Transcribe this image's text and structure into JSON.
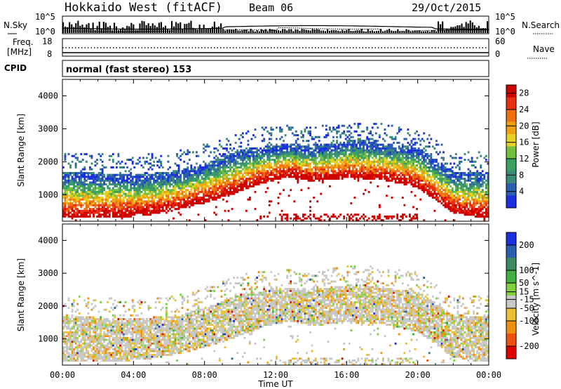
{
  "header": {
    "title": "Hokkaido West (fitACF)",
    "beam": "Beam 06",
    "date": "29/Oct/2015"
  },
  "summary_panel": {
    "nsky_label": "N.Sky",
    "nsky_ticks": [
      "10^5",
      "10^0"
    ],
    "nsearch_label": "N.Search",
    "nsearch_ticks": [
      "10^5",
      "10^0"
    ],
    "freq_label_1": "Freq.",
    "freq_label_2": "[MHz]",
    "freq_ticks": [
      "18",
      "8"
    ],
    "nave_label": "Nave",
    "nave_ticks": [
      "60",
      "0"
    ],
    "cpid_label": "CPID",
    "cpid_value": "normal (fast stereo) 153"
  },
  "colors": {
    "power_scale": [
      "#1a2fe0",
      "#2a5fb0",
      "#3a8a7a",
      "#3aa060",
      "#70c040",
      "#e8d020",
      "#f0a010",
      "#f07010",
      "#e83010",
      "#d00000"
    ],
    "velocity_scale": [
      "#1a2fe0",
      "#2a5fb0",
      "#3a8a60",
      "#40b040",
      "#80d040",
      "#c8c8c8",
      "#e8c030",
      "#f09010",
      "#f05010",
      "#e00000"
    ],
    "ground_scatter": "#808080"
  },
  "chart_data": [
    {
      "type": "heatmap",
      "parameter": "power",
      "xlabel": "Time UT",
      "ylabel": "Slant Range [km]",
      "x_ticks": [
        "00:00",
        "04:00",
        "08:00",
        "12:00",
        "16:00",
        "20:00",
        "00:00"
      ],
      "ylim": [
        200,
        4500
      ],
      "y_ticks": [
        1000,
        2000,
        3000,
        4000
      ],
      "colorbar_label": "Power [dB]",
      "colorbar_ticks": [
        4,
        8,
        12,
        16,
        20,
        24,
        28
      ],
      "colorbar_range": [
        0,
        30
      ],
      "echo_band": {
        "hours": [
          0,
          1,
          2,
          3,
          4,
          5,
          6,
          7,
          8,
          9,
          10,
          11,
          12,
          13,
          14,
          15,
          16,
          17,
          18,
          19,
          20,
          21,
          22,
          23,
          24
        ],
        "lower_km": [
          450,
          450,
          450,
          450,
          500,
          550,
          650,
          750,
          900,
          1050,
          1250,
          1450,
          1600,
          1700,
          1550,
          1600,
          1650,
          1600,
          1600,
          1500,
          1350,
          1000,
          600,
          500,
          450
        ],
        "upper_km": [
          1600,
          1600,
          1550,
          1550,
          1500,
          1550,
          1600,
          1700,
          1850,
          2050,
          2250,
          2350,
          2400,
          2450,
          2350,
          2450,
          2550,
          2550,
          2450,
          2400,
          2350,
          2000,
          1600,
          1600,
          1600
        ]
      }
    },
    {
      "type": "heatmap",
      "parameter": "velocity",
      "xlabel": "Time UT",
      "ylabel": "Slant Range [km]",
      "x_ticks": [
        "00:00",
        "04:00",
        "08:00",
        "12:00",
        "16:00",
        "20:00",
        "00:00"
      ],
      "ylim": [
        200,
        4500
      ],
      "y_ticks": [
        1000,
        2000,
        3000,
        4000
      ],
      "colorbar_label": "Velocity [m s^-1]",
      "colorbar_ticks": [
        200,
        100,
        50,
        15,
        -15,
        -50,
        -100,
        -200
      ],
      "colorbar_range": [
        -250,
        250
      ]
    }
  ]
}
